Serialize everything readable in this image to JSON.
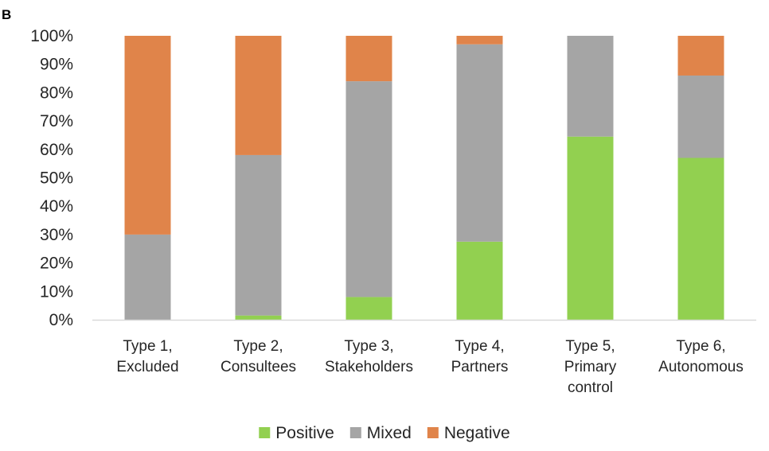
{
  "panel_label": "B",
  "chart_data": {
    "type": "bar",
    "stacked": true,
    "title": "",
    "xlabel": "",
    "ylabel": "",
    "ylim": [
      0,
      100
    ],
    "yticks": [
      "0%",
      "10%",
      "20%",
      "30%",
      "40%",
      "50%",
      "60%",
      "70%",
      "80%",
      "90%",
      "100%"
    ],
    "categories": [
      [
        "Type 1,",
        "Excluded"
      ],
      [
        "Type 2,",
        "Consultees"
      ],
      [
        "Type 3,",
        "Stakeholders"
      ],
      [
        "Type 4,",
        "Partners"
      ],
      [
        "Type 5,",
        "Primary",
        "control"
      ],
      [
        "Type 6,",
        "Autonomous"
      ]
    ],
    "series": [
      {
        "name": "Positive",
        "color": "#92d050",
        "values": [
          0,
          1.5,
          8,
          27.5,
          64.5,
          57
        ]
      },
      {
        "name": "Mixed",
        "color": "#a5a5a5",
        "values": [
          30,
          56.5,
          76,
          69.5,
          35.5,
          29
        ]
      },
      {
        "name": "Negative",
        "color": "#e0844a",
        "values": [
          70,
          42,
          16,
          3,
          0,
          14
        ]
      }
    ],
    "legend": "bottom",
    "grid": false
  }
}
